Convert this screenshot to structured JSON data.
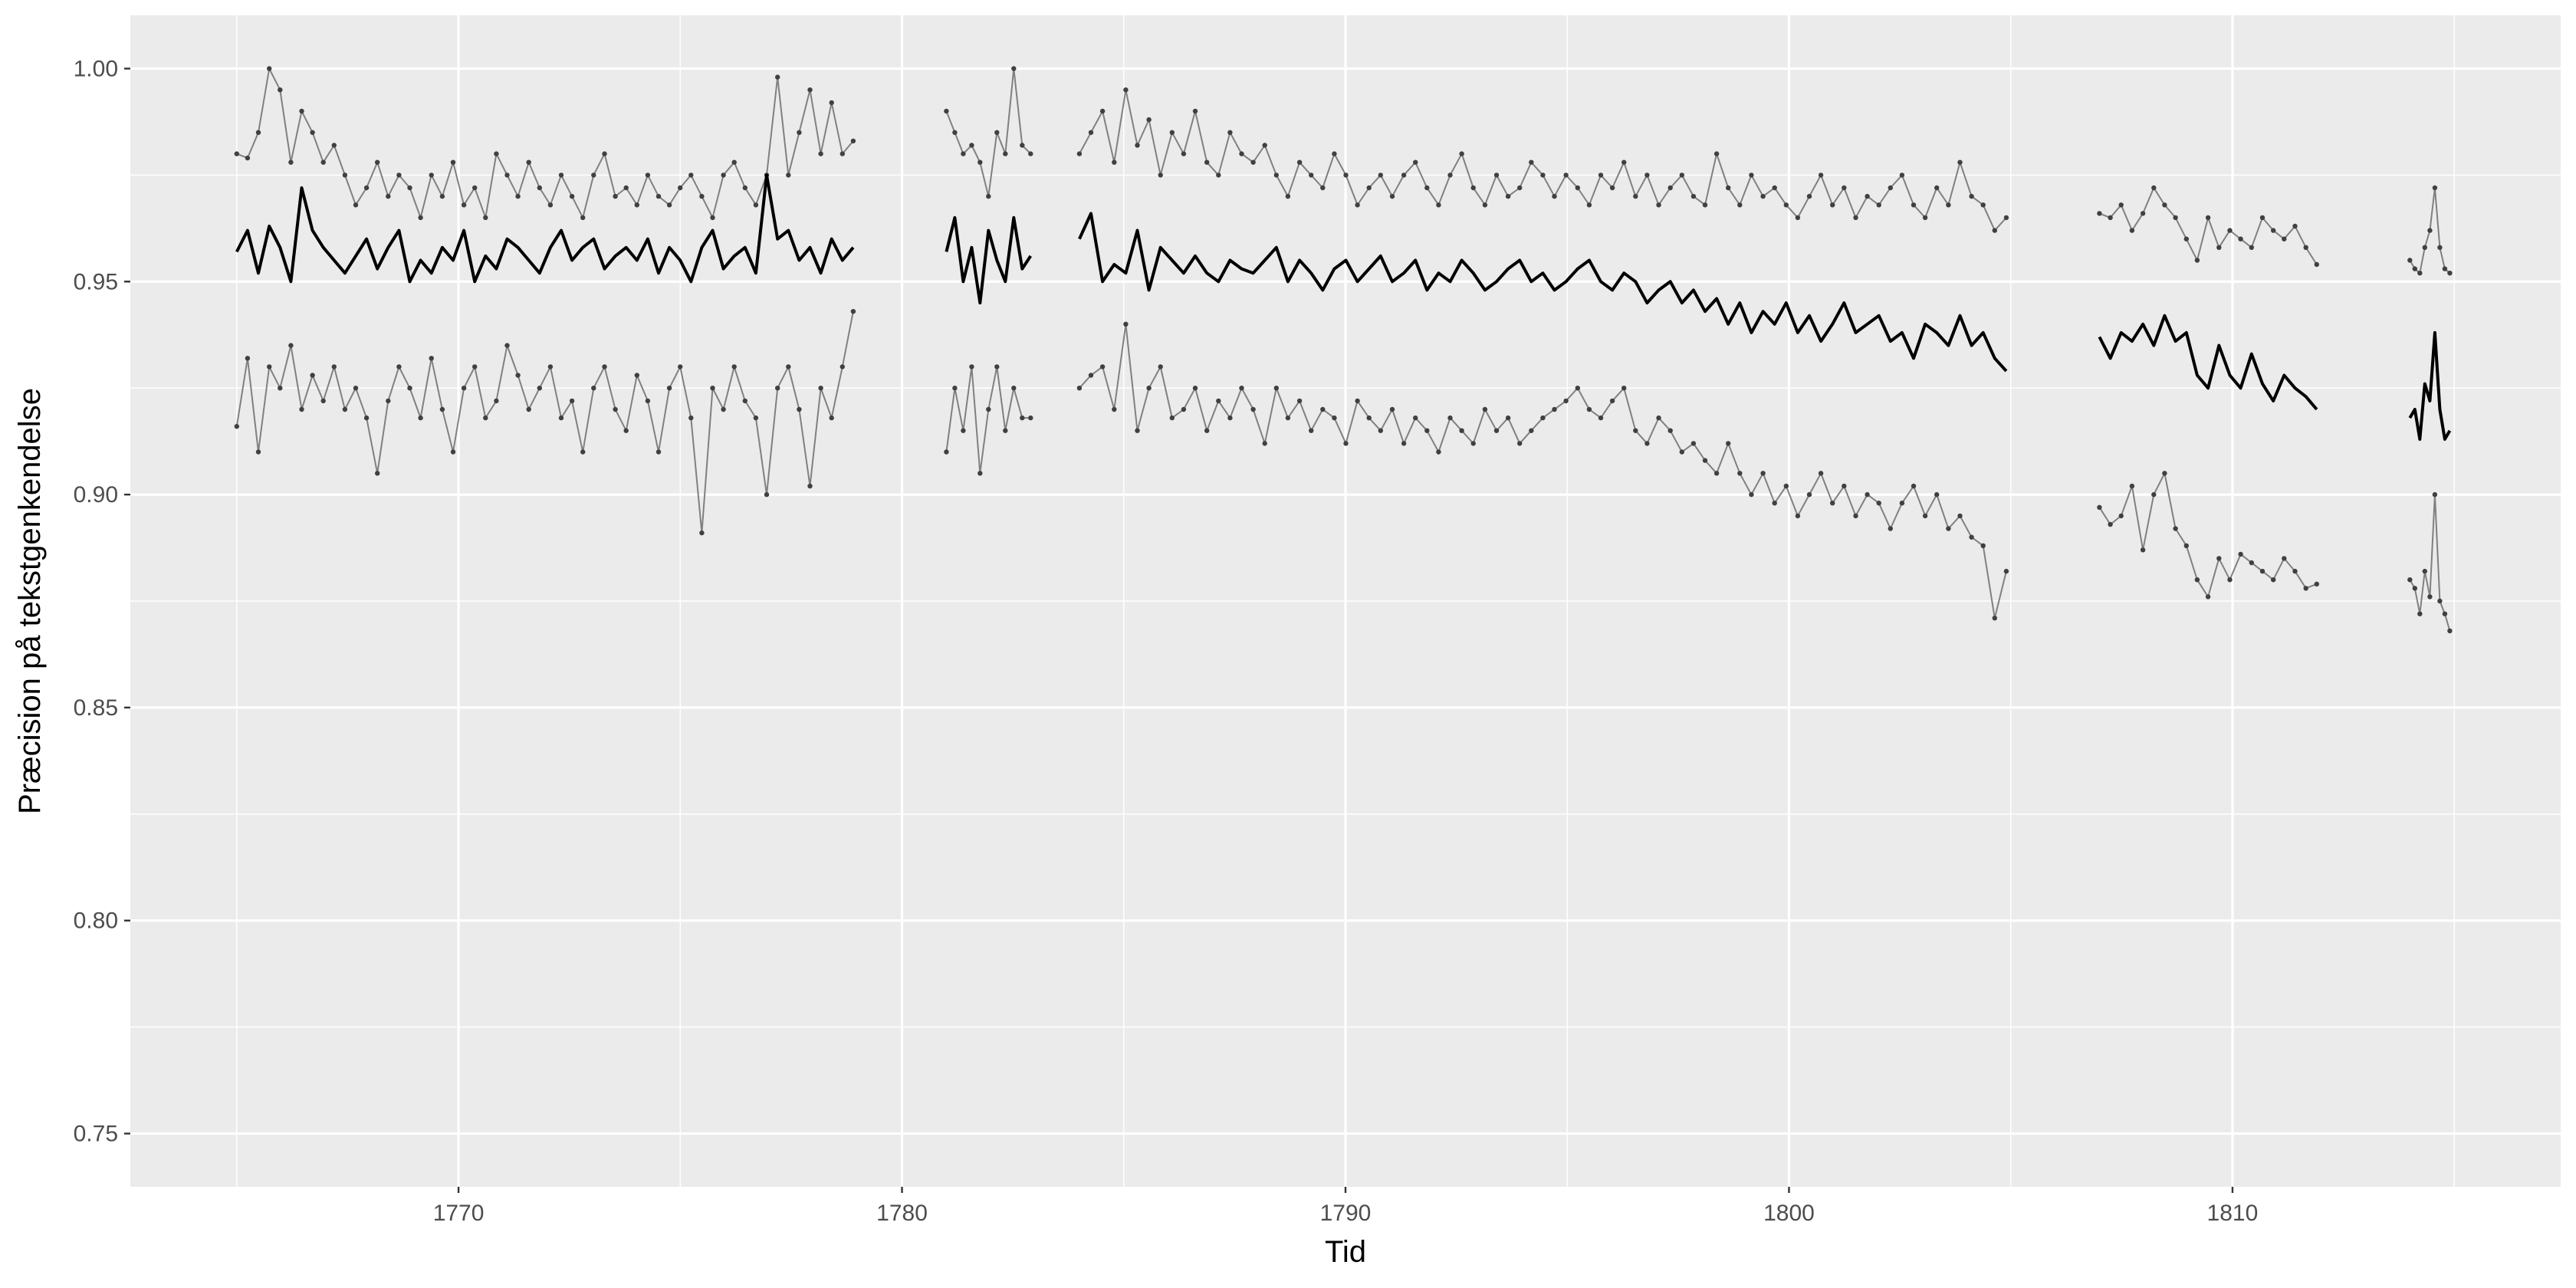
{
  "chart_data": {
    "type": "line",
    "title": "",
    "xlabel": "Tid",
    "ylabel": "Præcision på tekstgenkendelse",
    "xlim": [
      1762.6,
      1817.4
    ],
    "ylim": [
      0.7375,
      1.0125
    ],
    "x_ticks": [
      1770,
      1780,
      1790,
      1800,
      1810
    ],
    "x_tick_labels": [
      "1770",
      "1780",
      "1790",
      "1800",
      "1810"
    ],
    "y_ticks": [
      0.75,
      0.8,
      0.85,
      0.9,
      0.95,
      1.0
    ],
    "y_tick_labels": [
      "0.75",
      "0.80",
      "0.85",
      "0.90",
      "0.95",
      "1.00"
    ],
    "grid": true,
    "background": "#ebebeb",
    "segments": [
      {
        "x_start": 1765.0,
        "x_end": 1778.9,
        "upper": [
          0.98,
          0.979,
          0.985,
          1.0,
          0.995,
          0.978,
          0.99,
          0.985,
          0.978,
          0.982,
          0.975,
          0.968,
          0.972,
          0.978,
          0.97,
          0.975,
          0.972,
          0.965,
          0.975,
          0.97,
          0.978,
          0.968,
          0.972,
          0.965,
          0.98,
          0.975,
          0.97,
          0.978,
          0.972,
          0.968,
          0.975,
          0.97,
          0.965,
          0.975,
          0.98,
          0.97,
          0.972,
          0.968,
          0.975,
          0.97,
          0.968,
          0.972,
          0.975,
          0.97,
          0.965,
          0.975,
          0.978,
          0.972,
          0.968,
          0.975,
          0.998,
          0.975,
          0.985,
          0.995,
          0.98,
          0.992,
          0.98,
          0.983
        ],
        "mean": [
          0.957,
          0.962,
          0.952,
          0.963,
          0.958,
          0.95,
          0.972,
          0.962,
          0.958,
          0.955,
          0.952,
          0.956,
          0.96,
          0.953,
          0.958,
          0.962,
          0.95,
          0.955,
          0.952,
          0.958,
          0.955,
          0.962,
          0.95,
          0.956,
          0.953,
          0.96,
          0.958,
          0.955,
          0.952,
          0.958,
          0.962,
          0.955,
          0.958,
          0.96,
          0.953,
          0.956,
          0.958,
          0.955,
          0.96,
          0.952,
          0.958,
          0.955,
          0.95,
          0.958,
          0.962,
          0.953,
          0.956,
          0.958,
          0.952,
          0.975,
          0.96,
          0.962,
          0.955,
          0.958,
          0.952,
          0.96,
          0.955,
          0.958
        ],
        "lower": [
          0.916,
          0.932,
          0.91,
          0.93,
          0.925,
          0.935,
          0.92,
          0.928,
          0.922,
          0.93,
          0.92,
          0.925,
          0.918,
          0.905,
          0.922,
          0.93,
          0.925,
          0.918,
          0.932,
          0.92,
          0.91,
          0.925,
          0.93,
          0.918,
          0.922,
          0.935,
          0.928,
          0.92,
          0.925,
          0.93,
          0.918,
          0.922,
          0.91,
          0.925,
          0.93,
          0.92,
          0.915,
          0.928,
          0.922,
          0.91,
          0.925,
          0.93,
          0.918,
          0.891,
          0.925,
          0.92,
          0.93,
          0.922,
          0.918,
          0.9,
          0.925,
          0.93,
          0.92,
          0.902,
          0.925,
          0.918,
          0.93,
          0.943
        ]
      },
      {
        "x_start": 1781.0,
        "x_end": 1782.9,
        "upper": [
          0.99,
          0.985,
          0.98,
          0.982,
          0.978,
          0.97,
          0.985,
          0.98,
          1.0,
          0.982,
          0.98
        ],
        "mean": [
          0.957,
          0.965,
          0.95,
          0.958,
          0.945,
          0.962,
          0.955,
          0.95,
          0.965,
          0.953,
          0.956
        ],
        "lower": [
          0.91,
          0.925,
          0.915,
          0.93,
          0.905,
          0.92,
          0.93,
          0.915,
          0.925,
          0.918,
          0.918
        ]
      },
      {
        "x_start": 1784.0,
        "x_end": 1804.9,
        "upper": [
          0.98,
          0.985,
          0.99,
          0.978,
          0.995,
          0.982,
          0.988,
          0.975,
          0.985,
          0.98,
          0.99,
          0.978,
          0.975,
          0.985,
          0.98,
          0.978,
          0.982,
          0.975,
          0.97,
          0.978,
          0.975,
          0.972,
          0.98,
          0.975,
          0.968,
          0.972,
          0.975,
          0.97,
          0.975,
          0.978,
          0.972,
          0.968,
          0.975,
          0.98,
          0.972,
          0.968,
          0.975,
          0.97,
          0.972,
          0.978,
          0.975,
          0.97,
          0.975,
          0.972,
          0.968,
          0.975,
          0.972,
          0.978,
          0.97,
          0.975,
          0.968,
          0.972,
          0.975,
          0.97,
          0.968,
          0.98,
          0.972,
          0.968,
          0.975,
          0.97,
          0.972,
          0.968,
          0.965,
          0.97,
          0.975,
          0.968,
          0.972,
          0.965,
          0.97,
          0.968,
          0.972,
          0.975,
          0.968,
          0.965,
          0.972,
          0.968,
          0.978,
          0.97,
          0.968,
          0.962,
          0.965
        ],
        "mean": [
          0.96,
          0.966,
          0.95,
          0.954,
          0.952,
          0.962,
          0.948,
          0.958,
          0.955,
          0.952,
          0.956,
          0.952,
          0.95,
          0.955,
          0.953,
          0.952,
          0.955,
          0.958,
          0.95,
          0.955,
          0.952,
          0.948,
          0.953,
          0.955,
          0.95,
          0.953,
          0.956,
          0.95,
          0.952,
          0.955,
          0.948,
          0.952,
          0.95,
          0.955,
          0.952,
          0.948,
          0.95,
          0.953,
          0.955,
          0.95,
          0.952,
          0.948,
          0.95,
          0.953,
          0.955,
          0.95,
          0.948,
          0.952,
          0.95,
          0.945,
          0.948,
          0.95,
          0.945,
          0.948,
          0.943,
          0.946,
          0.94,
          0.945,
          0.938,
          0.943,
          0.94,
          0.945,
          0.938,
          0.942,
          0.936,
          0.94,
          0.945,
          0.938,
          0.94,
          0.942,
          0.936,
          0.938,
          0.932,
          0.94,
          0.938,
          0.935,
          0.942,
          0.935,
          0.938,
          0.932,
          0.929
        ],
        "lower": [
          0.925,
          0.928,
          0.93,
          0.92,
          0.94,
          0.915,
          0.925,
          0.93,
          0.918,
          0.92,
          0.925,
          0.915,
          0.922,
          0.918,
          0.925,
          0.92,
          0.912,
          0.925,
          0.918,
          0.922,
          0.915,
          0.92,
          0.918,
          0.912,
          0.922,
          0.918,
          0.915,
          0.92,
          0.912,
          0.918,
          0.915,
          0.91,
          0.918,
          0.915,
          0.912,
          0.92,
          0.915,
          0.918,
          0.912,
          0.915,
          0.918,
          0.92,
          0.922,
          0.925,
          0.92,
          0.918,
          0.922,
          0.925,
          0.915,
          0.912,
          0.918,
          0.915,
          0.91,
          0.912,
          0.908,
          0.905,
          0.912,
          0.905,
          0.9,
          0.905,
          0.898,
          0.902,
          0.895,
          0.9,
          0.905,
          0.898,
          0.902,
          0.895,
          0.9,
          0.898,
          0.892,
          0.898,
          0.902,
          0.895,
          0.9,
          0.892,
          0.895,
          0.89,
          0.888,
          0.871,
          0.882
        ]
      },
      {
        "x_start": 1807.0,
        "x_end": 1811.9,
        "upper": [
          0.966,
          0.965,
          0.968,
          0.962,
          0.966,
          0.972,
          0.968,
          0.965,
          0.96,
          0.955,
          0.965,
          0.958,
          0.962,
          0.96,
          0.958,
          0.965,
          0.962,
          0.96,
          0.963,
          0.958,
          0.954
        ],
        "mean": [
          0.937,
          0.932,
          0.938,
          0.936,
          0.94,
          0.935,
          0.942,
          0.936,
          0.938,
          0.928,
          0.925,
          0.935,
          0.928,
          0.925,
          0.933,
          0.926,
          0.922,
          0.928,
          0.925,
          0.923,
          0.92
        ],
        "lower": [
          0.897,
          0.893,
          0.895,
          0.902,
          0.887,
          0.9,
          0.905,
          0.892,
          0.888,
          0.88,
          0.876,
          0.885,
          0.88,
          0.886,
          0.884,
          0.882,
          0.88,
          0.885,
          0.882,
          0.878,
          0.879
        ]
      },
      {
        "x_start": 1814.0,
        "x_end": 1814.9,
        "upper": [
          0.955,
          0.953,
          0.952,
          0.958,
          0.962,
          0.972,
          0.958,
          0.953,
          0.952
        ],
        "mean": [
          0.918,
          0.92,
          0.913,
          0.926,
          0.922,
          0.938,
          0.92,
          0.913,
          0.915
        ],
        "lower": [
          0.88,
          0.878,
          0.872,
          0.882,
          0.876,
          0.9,
          0.875,
          0.872,
          0.868
        ]
      }
    ],
    "mean_color": "#000000",
    "band_color": "#808080",
    "point_color": "#404040"
  }
}
